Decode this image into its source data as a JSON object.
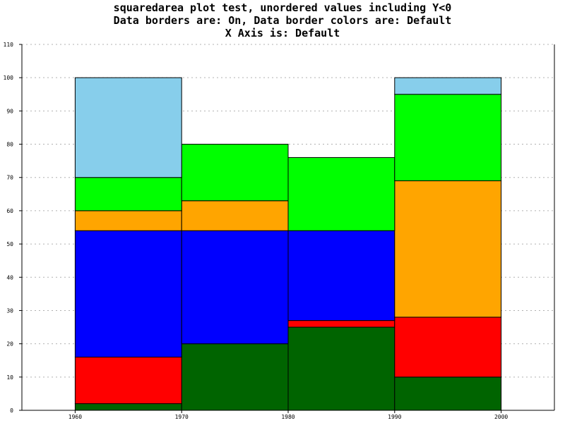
{
  "titles": [
    "squaredarea plot test, unordered values including Y<0",
    "Data borders are: On, Data border colors are: Default",
    "X Axis is: Default"
  ],
  "chart_data": {
    "type": "area",
    "style": "squared",
    "x": [
      1960,
      1970,
      1980,
      1990,
      2000
    ],
    "ylim": [
      0,
      110
    ],
    "yticks": [
      0,
      10,
      20,
      30,
      40,
      50,
      60,
      70,
      80,
      90,
      100,
      110
    ],
    "xtick_labels": [
      "1960",
      "1970",
      "1980",
      "1990",
      "2000"
    ],
    "grid": "horizontal-dashed",
    "data_borders": true,
    "series": [
      {
        "color": "#006400",
        "top": [
          2,
          20,
          25,
          10,
          10
        ]
      },
      {
        "color": "#FF0000",
        "top": [
          16,
          20,
          27,
          28,
          28
        ]
      },
      {
        "color": "#0000FF",
        "top": [
          54,
          54,
          54,
          28,
          28
        ]
      },
      {
        "color": "#FFA500",
        "top": [
          60,
          63,
          54,
          69,
          69
        ]
      },
      {
        "color": "#00FF00",
        "top": [
          70,
          80,
          76,
          95,
          95
        ]
      },
      {
        "color": "#87CEEB",
        "top": [
          100,
          80,
          76,
          100,
          100
        ]
      }
    ]
  }
}
